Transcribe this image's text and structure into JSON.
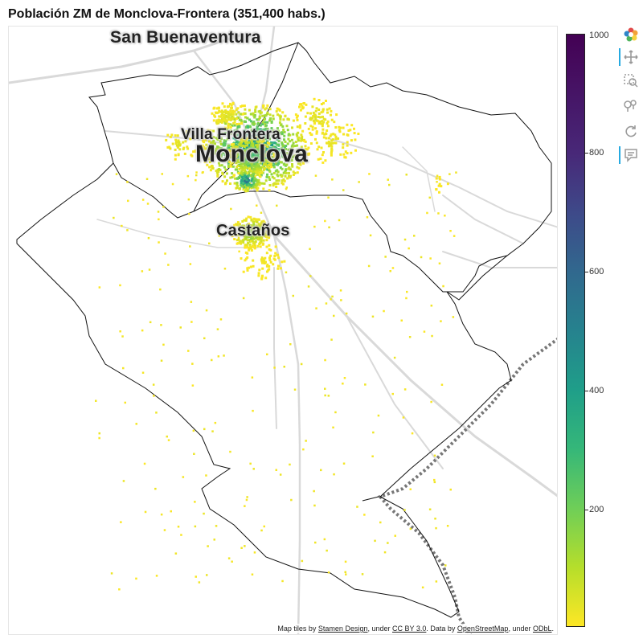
{
  "title": "Población ZM de Monclova-Frontera (351,400 habs.)",
  "map": {
    "city_labels": [
      "San Buenaventura",
      "Villa Frontera",
      "Monclova",
      "Castaños"
    ],
    "attribution": {
      "p1": "Map tiles by ",
      "stamen": "Stamen Design",
      "p2": ", under ",
      "ccby": "CC BY 3.0",
      "p3": ". Data by ",
      "osm": "OpenStreetMap",
      "p4": ", under ",
      "odbl": "ODbL",
      "p5": "."
    }
  },
  "colorbar": {
    "colormap": "viridis",
    "min": 0,
    "max": 1000,
    "ticks": [
      "1000",
      "800",
      "600",
      "400",
      "200"
    ],
    "colors": {
      "low": "#fde725",
      "mid": "#21918c",
      "high": "#440154"
    }
  },
  "toolbar": {
    "icons": [
      "bokeh-logo-icon",
      "pan-icon",
      "box-zoom-icon",
      "wheel-zoom-icon",
      "reset-icon",
      "hover-icon"
    ]
  }
}
